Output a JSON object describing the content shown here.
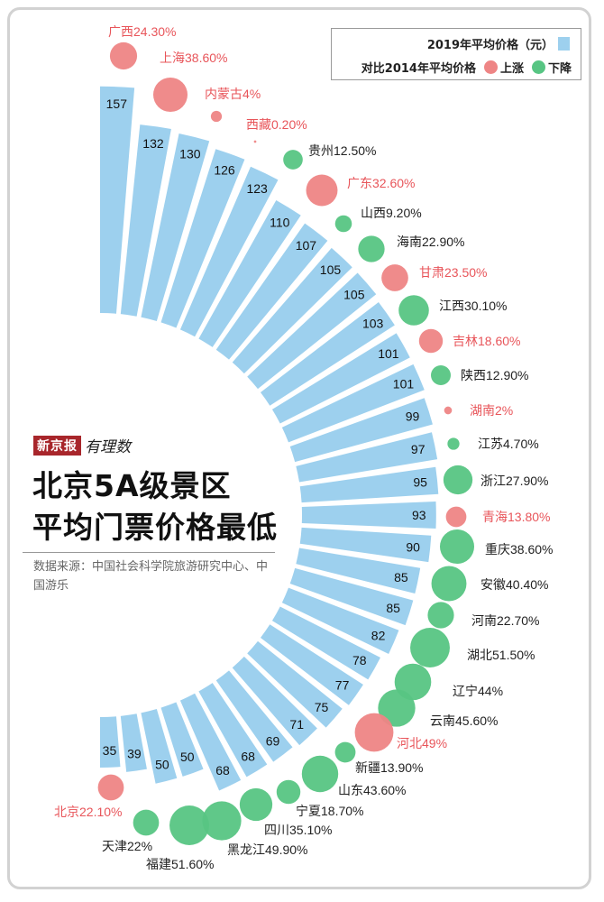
{
  "legend": {
    "price_label": "2019年平均价格（元）",
    "compare_label": "对比2014年平均价格",
    "up_label": "上涨",
    "down_label": "下降"
  },
  "branding": {
    "newspaper": "新京报",
    "column": "有理数"
  },
  "title": {
    "line1": "北京5A级景区",
    "line2": "平均门票价格最低"
  },
  "source": "数据来源：中国社会科学院旅游研究中心、中国游乐",
  "colors": {
    "bar": "#9dd0ee",
    "up": "#ee8585",
    "down": "#57c583",
    "up_text": "#e8555a",
    "down_text": "#222222"
  },
  "chart_data": {
    "type": "radial-bar",
    "series": [
      {
        "name": "2019年平均价格（元）",
        "values": [
          157,
          132,
          130,
          126,
          123,
          110,
          107,
          105,
          105,
          103,
          101,
          101,
          99,
          97,
          95,
          93,
          90,
          85,
          85,
          82,
          78,
          77,
          75,
          71,
          69,
          68,
          68,
          50,
          50,
          39,
          35
        ]
      },
      {
        "name": "对比2014年平均价格",
        "values": [
          24.3,
          38.6,
          4,
          0.2,
          12.5,
          32.6,
          9.2,
          22.9,
          23.5,
          30.1,
          18.6,
          12.9,
          2,
          4.7,
          27.9,
          13.8,
          38.6,
          40.4,
          22.7,
          51.5,
          44,
          45.6,
          49,
          13.9,
          43.6,
          18.7,
          35.1,
          49.9,
          51.6,
          22,
          22.1
        ]
      }
    ],
    "categories": [
      "广西",
      "上海",
      "内蒙古",
      "西藏",
      "贵州",
      "广东",
      "山西",
      "海南",
      "甘肃",
      "江西",
      "吉林",
      "陕西",
      "湖南",
      "江苏",
      "浙江",
      "青海",
      "重庆",
      "安徽",
      "河南",
      "湖北",
      "辽宁",
      "云南",
      "河北",
      "新疆",
      "山东",
      "宁夏",
      "四川",
      "黑龙江",
      "福建",
      "天津",
      "北京"
    ],
    "change_labels": [
      "24.30%",
      "38.60%",
      "4%",
      "0.20%",
      "12.50%",
      "32.60%",
      "9.20%",
      "22.90%",
      "23.50%",
      "30.10%",
      "18.60%",
      "12.90%",
      "2%",
      "4.70%",
      "27.90%",
      "13.80%",
      "38.60%",
      "40.40%",
      "22.70%",
      "51.50%",
      "44%",
      "45.60%",
      "49%",
      "13.90%",
      "43.60%",
      "18.70%",
      "35.10%",
      "49.90%",
      "51.60%",
      "22%",
      "22.10%"
    ],
    "direction": [
      "up",
      "up",
      "up",
      "up",
      "down",
      "up",
      "down",
      "down",
      "up",
      "down",
      "up",
      "down",
      "up",
      "down",
      "down",
      "up",
      "down",
      "down",
      "down",
      "down",
      "down",
      "down",
      "up",
      "down",
      "down",
      "down",
      "down",
      "down",
      "down",
      "down",
      "up"
    ]
  }
}
